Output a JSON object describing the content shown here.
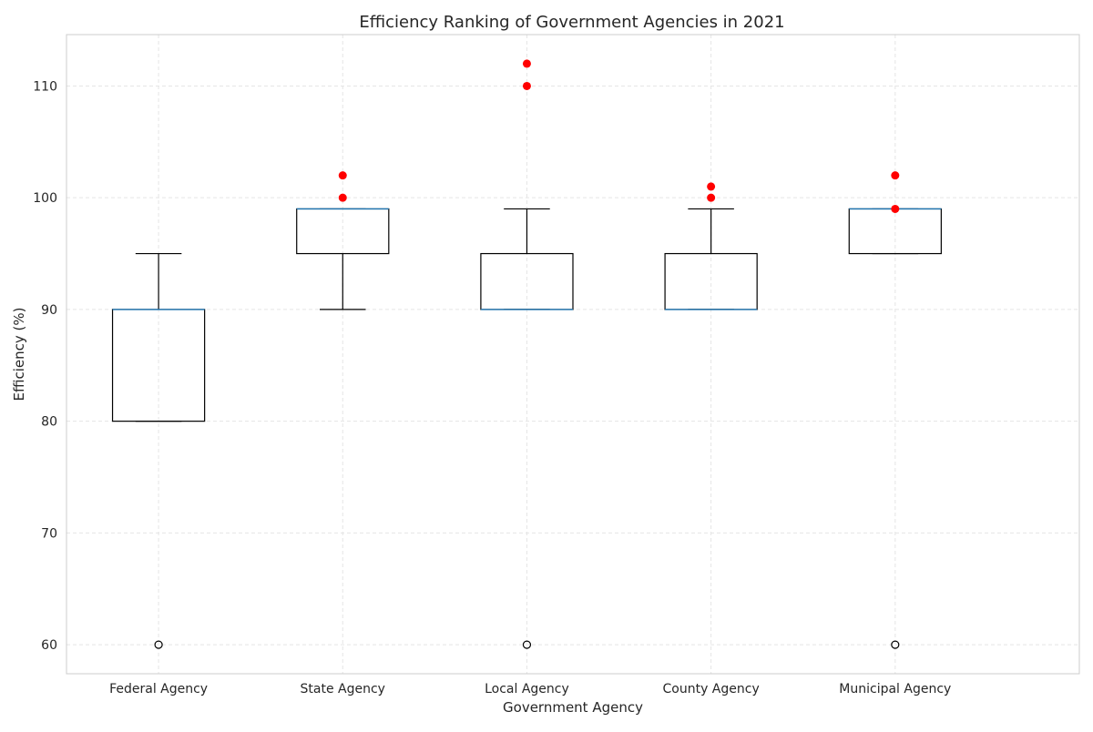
{
  "chart_data": {
    "type": "box",
    "title": "Efficiency Ranking of Government Agencies in 2021",
    "xlabel": "Government Agency",
    "ylabel": "Efficiency (%)",
    "categories": [
      "Federal Agency",
      "State Agency",
      "Local Agency",
      "County Agency",
      "Municipal Agency"
    ],
    "ylim": [
      57.4,
      114.6
    ],
    "yticks": [
      60,
      70,
      80,
      90,
      100,
      110
    ],
    "grid": true,
    "boxes": [
      {
        "category": "Federal Agency",
        "whisker_low": 80,
        "q1": 80,
        "median": 90,
        "q3": 90,
        "whisker_high": 95,
        "fliers": [
          60
        ]
      },
      {
        "category": "State Agency",
        "whisker_low": 90,
        "q1": 95,
        "median": 99,
        "q3": 99,
        "whisker_high": 99,
        "fliers": []
      },
      {
        "category": "Local Agency",
        "whisker_low": 90,
        "q1": 90,
        "median": 90,
        "q3": 95,
        "whisker_high": 99,
        "fliers": [
          60
        ]
      },
      {
        "category": "County Agency",
        "whisker_low": 90,
        "q1": 90,
        "median": 90,
        "q3": 95,
        "whisker_high": 99,
        "fliers": []
      },
      {
        "category": "Municipal Agency",
        "whisker_low": 95,
        "q1": 95,
        "median": 99,
        "q3": 99,
        "whisker_high": 99,
        "fliers": [
          60
        ]
      }
    ],
    "highlight_points": [
      {
        "category": "State Agency",
        "values": [
          100,
          102
        ]
      },
      {
        "category": "Local Agency",
        "values": [
          110,
          112
        ]
      },
      {
        "category": "County Agency",
        "values": [
          100,
          101
        ]
      },
      {
        "category": "Municipal Agency",
        "values": [
          99,
          102
        ]
      }
    ],
    "colors": {
      "box_edge": "#000000",
      "median": "#1f77b4",
      "highlight": "#ff0000",
      "grid": "#e5e5e5",
      "spine": "#cccccc"
    }
  }
}
